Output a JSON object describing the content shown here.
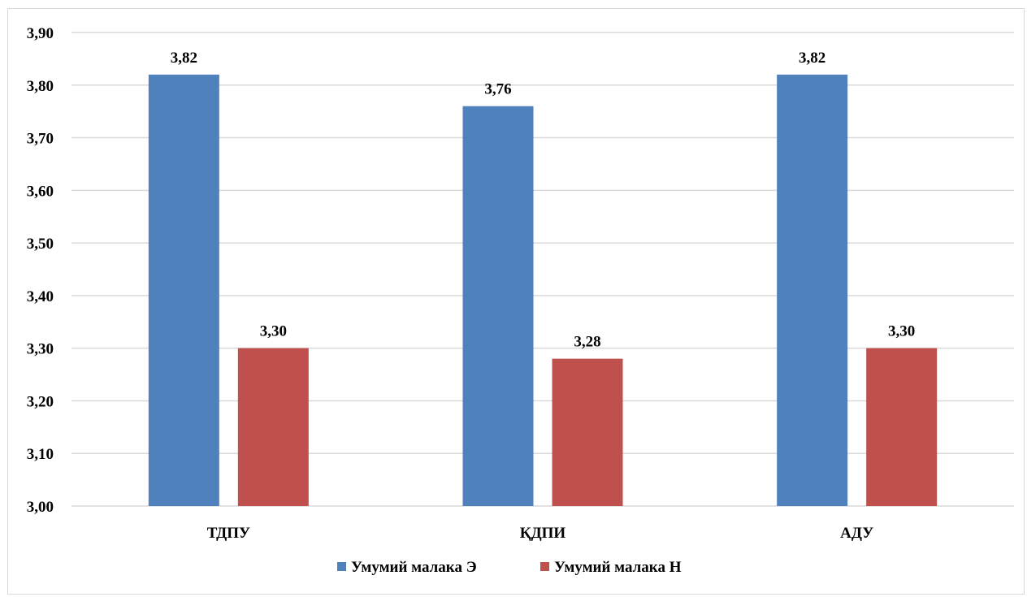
{
  "chart_data": {
    "type": "bar",
    "categories": [
      "ТДПУ",
      "ҚДПИ",
      "АДУ"
    ],
    "series": [
      {
        "name": "Умумий малака Э",
        "values": [
          3.82,
          3.76,
          3.82
        ],
        "labels": [
          "3,82",
          "3,76",
          "3,82"
        ],
        "color": "#4f81bd"
      },
      {
        "name": "Умумий малака Н",
        "values": [
          3.3,
          3.28,
          3.3
        ],
        "labels": [
          "3,30",
          "3,28",
          "3,30"
        ],
        "color": "#c0504d"
      }
    ],
    "ylim": [
      3.0,
      3.9
    ],
    "yticks": [
      3.0,
      3.1,
      3.2,
      3.3,
      3.4,
      3.5,
      3.6,
      3.7,
      3.8,
      3.9
    ],
    "ytick_labels": [
      "3,00",
      "3,10",
      "3,20",
      "3,30",
      "3,40",
      "3,50",
      "3,60",
      "3,70",
      "3,80",
      "3,90"
    ],
    "grid": true,
    "gridline_color": "#d9d9d9",
    "legend_position": "bottom"
  }
}
